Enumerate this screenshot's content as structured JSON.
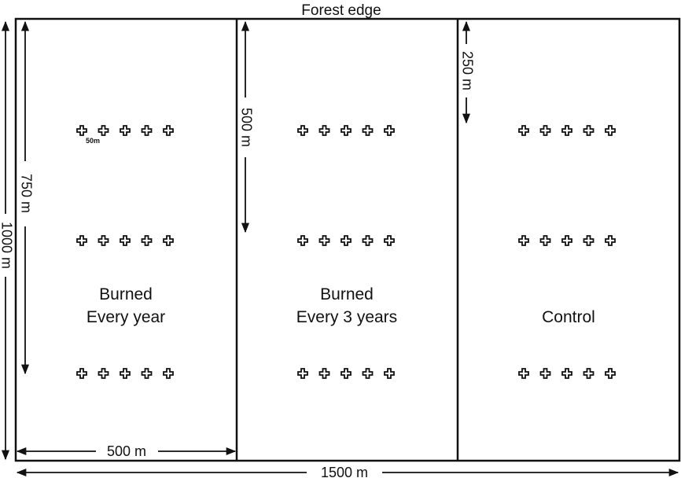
{
  "diagram": {
    "top_label": "Forest edge",
    "plots": [
      {
        "line1": "Burned",
        "line2": "Every year"
      },
      {
        "line1": "Burned",
        "line2": "Every 3 years"
      },
      {
        "line1": "Control",
        "line2": ""
      }
    ],
    "dimensions": {
      "total_height": "1000 m",
      "depth_750": "750 m",
      "depth_500": "500 m",
      "depth_250": "250 m",
      "plot_width": "500 m",
      "total_width": "1500 m",
      "point_spacing": "50m"
    },
    "marker_rows": 3,
    "markers_per_row": 5
  }
}
